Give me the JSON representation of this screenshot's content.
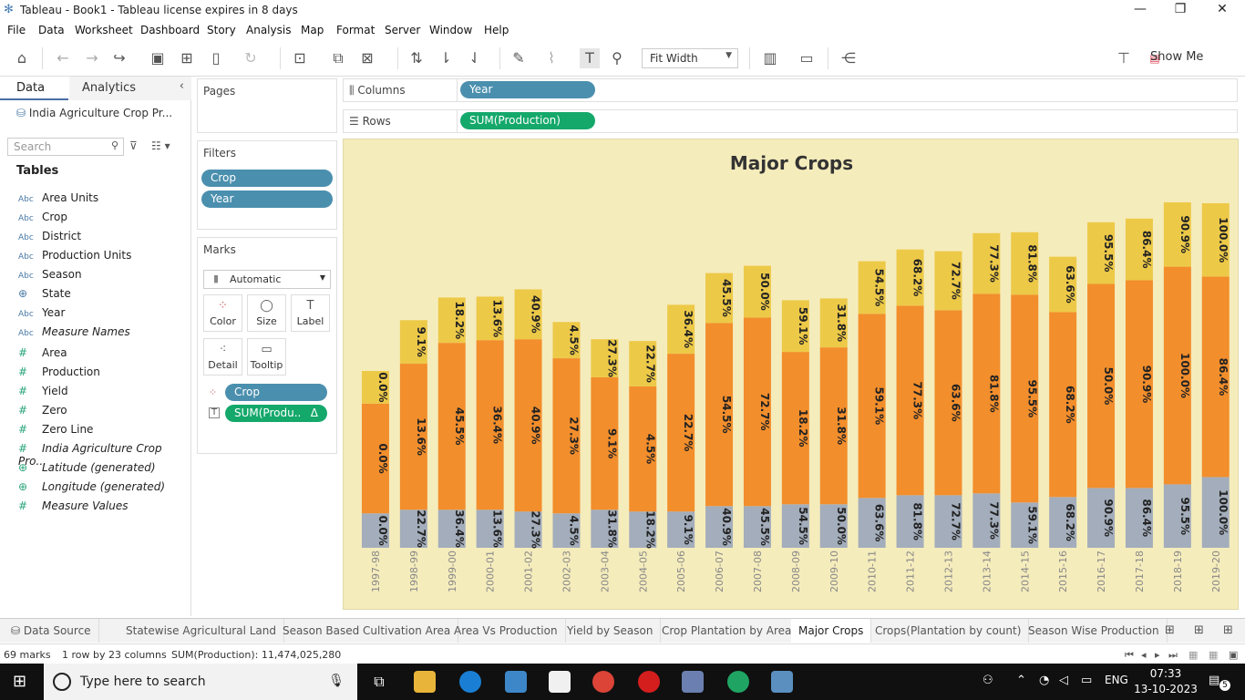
{
  "window": {
    "title": "Tableau - Book1 - Tableau license expires in 8 days"
  },
  "menu": [
    "File",
    "Data",
    "Worksheet",
    "Dashboard",
    "Story",
    "Analysis",
    "Map",
    "Format",
    "Server",
    "Window",
    "Help"
  ],
  "toolbar": {
    "fit_label": "Fit Width",
    "show_me": "Show Me"
  },
  "datapane": {
    "tab_data": "Data",
    "tab_analytics": "Analytics",
    "datasource": "India Agriculture Crop Pr...",
    "search_placeholder": "Search",
    "tables_heading": "Tables",
    "fields": [
      {
        "icon": "Abc",
        "name": "Area Units",
        "italic": false
      },
      {
        "icon": "Abc",
        "name": "Crop",
        "italic": false
      },
      {
        "icon": "Abc",
        "name": "District",
        "italic": false
      },
      {
        "icon": "Abc",
        "name": "Production Units",
        "italic": false
      },
      {
        "icon": "Abc",
        "name": "Season",
        "italic": false
      },
      {
        "icon": "globe",
        "name": "State",
        "italic": false
      },
      {
        "icon": "Abc",
        "name": "Year",
        "italic": false
      },
      {
        "icon": "Abc",
        "name": "Measure Names",
        "italic": true
      },
      {
        "icon": "#",
        "name": "Area",
        "italic": false
      },
      {
        "icon": "#",
        "name": "Production",
        "italic": false
      },
      {
        "icon": "#",
        "name": "Yield",
        "italic": false
      },
      {
        "icon": "#",
        "name": "Zero",
        "italic": false
      },
      {
        "icon": "#",
        "name": "Zero Line",
        "italic": false
      },
      {
        "icon": "#",
        "name": "India Agriculture Crop Pro...",
        "italic": true
      },
      {
        "icon": "globe",
        "name": "Latitude (generated)",
        "italic": true
      },
      {
        "icon": "globe",
        "name": "Longitude (generated)",
        "italic": true
      },
      {
        "icon": "#",
        "name": "Measure Values",
        "italic": true
      }
    ]
  },
  "pages": {
    "title": "Pages"
  },
  "filters": {
    "title": "Filters",
    "items": [
      "Crop",
      "Year"
    ]
  },
  "marks": {
    "title": "Marks",
    "type": "Automatic",
    "buttons": [
      "Color",
      "Size",
      "Label",
      "Detail",
      "Tooltip"
    ],
    "pills": [
      "Crop",
      "SUM(Produ.."
    ]
  },
  "shelves": {
    "columns_label": "Columns",
    "columns_pill": "Year",
    "rows_label": "Rows",
    "rows_pill": "SUM(Production)"
  },
  "chart_data": {
    "type": "bar",
    "title": "Major Crops",
    "xlabel": "",
    "ylabel": "",
    "colors": {
      "bottom": "#a3adbb",
      "middle": "#f28e2c",
      "top": "#edc948",
      "background": "#f5ecbc"
    },
    "categories": [
      "1997-98",
      "1998-99",
      "1999-00",
      "2000-01",
      "2001-02",
      "2002-03",
      "2003-04",
      "2004-05",
      "2005-06",
      "2006-07",
      "2007-08",
      "2008-09",
      "2009-10",
      "2010-11",
      "2011-12",
      "2012-13",
      "2013-14",
      "2014-15",
      "2015-16",
      "2016-17",
      "2017-18",
      "2018-19",
      "2019-20"
    ],
    "series": [
      {
        "values": [
          38,
          42,
          42,
          42,
          40,
          38,
          42,
          40,
          40,
          46,
          46,
          48,
          48,
          55,
          58,
          58,
          60,
          50,
          56,
          66,
          66,
          70,
          78
        ],
        "labels": [
          "0.0%",
          "22.7%",
          "36.4%",
          "13.6%",
          "27.3%",
          "4.5%",
          "31.8%",
          "18.2%",
          "9.1%",
          "40.9%",
          "45.5%",
          "54.5%",
          "50.0%",
          "63.6%",
          "81.8%",
          "72.7%",
          "77.3%",
          "59.1%",
          "68.2%",
          "90.9%",
          "86.4%",
          "95.5%",
          "100.0%"
        ]
      },
      {
        "values": [
          121,
          161,
          184,
          187,
          190,
          171,
          146,
          138,
          174,
          202,
          208,
          168,
          173,
          203,
          209,
          204,
          220,
          229,
          204,
          225,
          229,
          240,
          221
        ],
        "labels": [
          "0.0%",
          "13.6%",
          "45.5%",
          "36.4%",
          "40.9%",
          "27.3%",
          "9.1%",
          "4.5%",
          "22.7%",
          "54.5%",
          "72.7%",
          "18.2%",
          "31.8%",
          "59.1%",
          "77.3%",
          "63.6%",
          "81.8%",
          "95.5%",
          "68.2%",
          "50.0%",
          "90.9%",
          "100.0%",
          "86.4%"
        ]
      },
      {
        "values": [
          36,
          48,
          50,
          48,
          55,
          40,
          42,
          50,
          54,
          55,
          57,
          57,
          54,
          58,
          62,
          65,
          67,
          69,
          61,
          68,
          68,
          71,
          81
        ],
        "labels": [
          "0.0%",
          "9.1%",
          "18.2%",
          "13.6%",
          "40.9%",
          "4.5%",
          "27.3%",
          "22.7%",
          "36.4%",
          "45.5%",
          "50.0%",
          "59.1%",
          "31.8%",
          "54.5%",
          "68.2%",
          "72.7%",
          "77.3%",
          "81.8%",
          "63.6%",
          "95.5%",
          "86.4%",
          "90.9%",
          "100.0%"
        ]
      }
    ],
    "ylim": [
      0,
      390
    ]
  },
  "sheet_tabs": [
    "Data Source",
    "Statewise Agricultural Land",
    "Season Based Cultivation Area",
    "Area Vs Production",
    "Yield by Season",
    "Crop Plantation by Area",
    "Major Crops",
    "Crops(Plantation by count)",
    "Season Wise Production"
  ],
  "active_tab": "Major Crops",
  "status": {
    "marks": "69 marks",
    "grid": "1 row by 23 columns",
    "sum": "SUM(Production): 11,474,025,280"
  },
  "taskbar": {
    "search": "Type here to search",
    "time": "07:33",
    "date": "13-10-2023",
    "lang": "ENG",
    "notif_count": "5"
  }
}
